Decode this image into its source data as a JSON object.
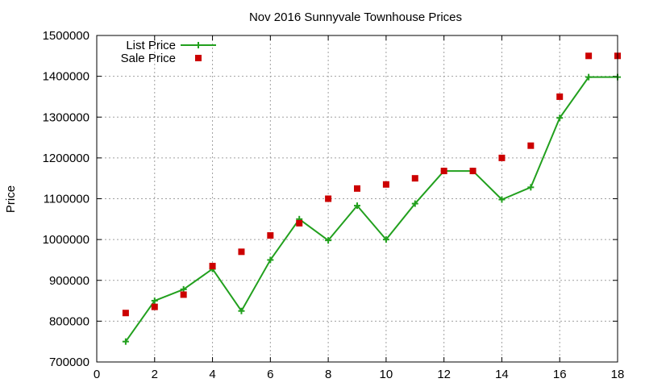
{
  "chart_data": {
    "type": "line",
    "title": "Nov 2016 Sunnyvale Townhouse Prices",
    "xlabel": "",
    "ylabel": "Price",
    "xlim": [
      0,
      18
    ],
    "ylim": [
      700000,
      1500000
    ],
    "x_ticks": [
      0,
      2,
      4,
      6,
      8,
      10,
      12,
      14,
      16,
      18
    ],
    "y_ticks": [
      700000,
      800000,
      900000,
      1000000,
      1100000,
      1200000,
      1300000,
      1400000,
      1500000
    ],
    "grid": true,
    "legend_position": "top-left",
    "series": [
      {
        "name": "List Price",
        "style": "line-with-plus-markers",
        "color": "#22a01e",
        "x": [
          1,
          2,
          3,
          4,
          5,
          6,
          7,
          8,
          9,
          10,
          11,
          12,
          13,
          14,
          15,
          16,
          17,
          18
        ],
        "y": [
          750000,
          850000,
          878000,
          928000,
          825000,
          950000,
          1050000,
          998000,
          1083000,
          1000000,
          1088000,
          1168000,
          1168000,
          1098000,
          1128000,
          1298000,
          1398000,
          1398000
        ]
      },
      {
        "name": "Sale Price",
        "style": "square-markers",
        "color": "#cc0000",
        "x": [
          1,
          2,
          3,
          4,
          5,
          6,
          7,
          8,
          9,
          10,
          11,
          12,
          13,
          14,
          15,
          16,
          17,
          18
        ],
        "y": [
          820000,
          835000,
          865000,
          935000,
          970000,
          1010000,
          1040000,
          1100000,
          1125000,
          1135000,
          1150000,
          1168000,
          1168000,
          1200000,
          1230000,
          1350000,
          1450000,
          1450000
        ]
      }
    ]
  }
}
